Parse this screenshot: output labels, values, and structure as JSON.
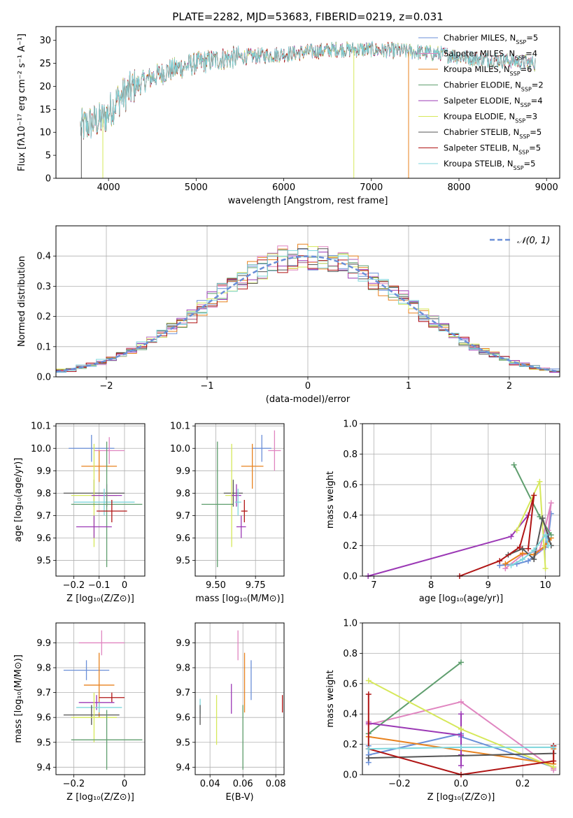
{
  "figure_title": "PLATE=2282, MJD=53683, FIBERID=0219, z=0.031",
  "colors": {
    "c0": "#6a8fd8",
    "c1": "#e8821e",
    "c2": "#5f9e6e",
    "c3": "#e085c0",
    "c4": "#9b38b5",
    "c5": "#d6e85a",
    "c6": "#555555",
    "c7": "#b01515",
    "c8": "#7fd6dc"
  },
  "chart_data": [
    {
      "id": "spectrum",
      "type": "line",
      "xlabel": "wavelength [Angstrom, rest frame]",
      "ylabel": "Flux [fλ10⁻¹⁷ erg cm⁻² s⁻¹ A⁻¹]",
      "xlim": [
        3400,
        9150
      ],
      "ylim": [
        0,
        33
      ],
      "xticks": [
        4000,
        5000,
        6000,
        7000,
        8000,
        9000
      ],
      "yticks": [
        0,
        5,
        10,
        15,
        20,
        25,
        30
      ],
      "legend_placement": "upper right",
      "legend": [
        {
          "label": "Chabrier MILES, N_SSP=5",
          "color": "c0"
        },
        {
          "label": "Salpeter MILES, N_SSP=4",
          "color": "c3"
        },
        {
          "label": "Kroupa MILES, N_SSP=6",
          "color": "c1"
        },
        {
          "label": "Chabrier ELODIE, N_SSP=2",
          "color": "c2"
        },
        {
          "label": "Salpeter ELODIE, N_SSP=4",
          "color": "c4"
        },
        {
          "label": "Kroupa ELODIE, N_SSP=3",
          "color": "c5"
        },
        {
          "label": "Chabrier STELIB, N_SSP=5",
          "color": "c6"
        },
        {
          "label": "Salpeter STELIB, N_SSP=5",
          "color": "c7"
        },
        {
          "label": "Kroupa STELIB, N_SSP=5",
          "color": "c8"
        }
      ],
      "continuum": [
        [
          3680,
          11
        ],
        [
          3800,
          12
        ],
        [
          3950,
          13
        ],
        [
          4100,
          17
        ],
        [
          4300,
          20
        ],
        [
          4500,
          22
        ],
        [
          4700,
          23.5
        ],
        [
          5000,
          25
        ],
        [
          5300,
          26
        ],
        [
          5600,
          26.5
        ],
        [
          6000,
          27
        ],
        [
          6300,
          27.5
        ],
        [
          6600,
          28
        ],
        [
          7000,
          28
        ],
        [
          7500,
          27.5
        ],
        [
          7800,
          27
        ],
        [
          8200,
          26
        ],
        [
          8600,
          25.5
        ],
        [
          8870,
          25
        ]
      ],
      "dropouts": [
        {
          "x": 3690,
          "color": "c6",
          "bottom": 0
        },
        {
          "x": 3935,
          "color": "c5",
          "bottom": 0
        },
        {
          "x": 6800,
          "color": "c5",
          "bottom": 0
        },
        {
          "x": 7425,
          "color": "c1",
          "bottom": 0
        }
      ]
    },
    {
      "id": "residuals",
      "type": "step",
      "xlabel": "(data-model)/error",
      "ylabel": "Normed distribution",
      "xlim": [
        -2.5,
        2.5
      ],
      "ylim": [
        0,
        0.5
      ],
      "xticks": [
        -2,
        -1,
        0,
        1,
        2
      ],
      "yticks": [
        0.0,
        0.1,
        0.2,
        0.3,
        0.4
      ],
      "grid": true,
      "legend_placement": "upper right",
      "legend": [
        {
          "label": "N(0,1)",
          "style": "dashed",
          "color": "c0"
        }
      ],
      "bin_width": 0.1
    },
    {
      "id": "age_vs_Z",
      "type": "errorbar",
      "xlabel": "Z [log₁₀(Z/Z⊙)]",
      "ylabel": "age [log₁₀(age/yr)]",
      "xlim": [
        -0.27,
        0.08
      ],
      "ylim": [
        9.43,
        10.11
      ],
      "xticks": [
        -0.2,
        -0.1,
        0.0
      ],
      "yticks": [
        9.5,
        9.6,
        9.7,
        9.8,
        9.9,
        10.0,
        10.1
      ],
      "points": [
        {
          "c": "c0",
          "x": -0.13,
          "xerr": 0.09,
          "y": 10.0,
          "yerr": 0.06
        },
        {
          "c": "c3",
          "x": -0.06,
          "xerr": 0.06,
          "y": 9.99,
          "yerr": 0.06
        },
        {
          "c": "c1",
          "x": -0.1,
          "xerr": 0.07,
          "y": 9.92,
          "yerr": 0.07
        },
        {
          "c": "c6",
          "x": -0.12,
          "xerr": 0.12,
          "y": 9.8,
          "yerr": 0.06
        },
        {
          "c": "c5",
          "x": -0.12,
          "xerr": 0.09,
          "y": 9.79,
          "yerr": 0.23
        },
        {
          "c": "c4",
          "x": -0.07,
          "xerr": 0.06,
          "y": 9.79,
          "yerr": 0.05
        },
        {
          "c": "c8",
          "x": -0.08,
          "xerr": 0.12,
          "y": 9.76,
          "yerr": 0.06
        },
        {
          "c": "c2",
          "x": -0.07,
          "xerr": 0.14,
          "y": 9.75,
          "yerr": 0.28
        },
        {
          "c": "c7",
          "x": -0.05,
          "xerr": 0.06,
          "y": 9.72,
          "yerr": 0.05
        },
        {
          "c": "c4",
          "x": -0.12,
          "xerr": 0.07,
          "y": 9.65,
          "yerr": 0.05
        }
      ]
    },
    {
      "id": "age_vs_mass",
      "type": "errorbar",
      "xlabel": "mass [log₁₀(M/M⊙)]",
      "ylabel": "",
      "xlim": [
        9.37,
        9.93
      ],
      "ylim": [
        9.43,
        10.11
      ],
      "xticks": [
        9.5,
        9.75
      ],
      "xticklabels": [
        "9.50",
        "9.75"
      ],
      "yticks": [
        9.5,
        9.6,
        9.7,
        9.8,
        9.9,
        10.0,
        10.1
      ],
      "points": [
        {
          "c": "c0",
          "x": 9.79,
          "xerr": 0.06,
          "y": 10.0,
          "yerr": 0.06
        },
        {
          "c": "c3",
          "x": 9.87,
          "xerr": 0.04,
          "y": 9.99,
          "yerr": 0.09
        },
        {
          "c": "c1",
          "x": 9.73,
          "xerr": 0.07,
          "y": 9.92,
          "yerr": 0.1
        },
        {
          "c": "c6",
          "x": 9.61,
          "xerr": 0.06,
          "y": 9.8,
          "yerr": 0.06
        },
        {
          "c": "c5",
          "x": 9.6,
          "xerr": 0.04,
          "y": 9.79,
          "yerr": 0.23
        },
        {
          "c": "c4",
          "x": 9.63,
          "xerr": 0.03,
          "y": 9.79,
          "yerr": 0.05
        },
        {
          "c": "c8",
          "x": 9.64,
          "xerr": 0.02,
          "y": 9.76,
          "yerr": 0.06
        },
        {
          "c": "c2",
          "x": 9.51,
          "xerr": 0.1,
          "y": 9.75,
          "yerr": 0.28
        },
        {
          "c": "c7",
          "x": 9.68,
          "xerr": 0.02,
          "y": 9.72,
          "yerr": 0.05
        },
        {
          "c": "c4",
          "x": 9.66,
          "xerr": 0.03,
          "y": 9.65,
          "yerr": 0.05
        }
      ]
    },
    {
      "id": "mass_weight_vs_age",
      "type": "line",
      "xlabel": "age [log₁₀(age/yr)]",
      "ylabel": "mass weight",
      "xlim": [
        6.8,
        10.25
      ],
      "ylim": [
        0,
        1.0
      ],
      "xticks": [
        7,
        8,
        9,
        10
      ],
      "yticks": [
        0.0,
        0.2,
        0.4,
        0.6,
        0.8,
        1.0
      ],
      "grid": true,
      "series": [
        {
          "c": "c0",
          "points": [
            [
              9.2,
              0.07
            ],
            [
              9.5,
              0.08
            ],
            [
              9.7,
              0.1
            ],
            [
              10.0,
              0.19
            ],
            [
              10.1,
              0.41
            ],
            [
              10.05,
              0.25
            ]
          ]
        },
        {
          "c": "c3",
          "points": [
            [
              9.3,
              0.05
            ],
            [
              9.6,
              0.14
            ],
            [
              9.9,
              0.17
            ],
            [
              10.1,
              0.48
            ],
            [
              10.05,
              0.3
            ]
          ]
        },
        {
          "c": "c1",
          "points": [
            [
              9.3,
              0.08
            ],
            [
              9.6,
              0.15
            ],
            [
              9.8,
              0.14
            ],
            [
              10.0,
              0.2
            ],
            [
              10.1,
              0.25
            ]
          ]
        },
        {
          "c": "c2",
          "points": [
            [
              9.45,
              0.73
            ],
            [
              9.9,
              0.39
            ],
            [
              10.1,
              0.27
            ]
          ]
        },
        {
          "c": "c4",
          "points": [
            [
              6.9,
              0.0
            ],
            [
              9.4,
              0.26
            ],
            [
              9.7,
              0.4
            ]
          ]
        },
        {
          "c": "c5",
          "points": [
            [
              9.5,
              0.3
            ],
            [
              9.9,
              0.62
            ],
            [
              10.0,
              0.05
            ]
          ]
        },
        {
          "c": "c6",
          "points": [
            [
              9.35,
              0.14
            ],
            [
              9.6,
              0.18
            ],
            [
              9.8,
              0.11
            ],
            [
              9.95,
              0.38
            ],
            [
              10.1,
              0.2
            ]
          ]
        },
        {
          "c": "c7",
          "points": [
            [
              8.5,
              0.0
            ],
            [
              9.2,
              0.1
            ],
            [
              9.55,
              0.19
            ],
            [
              9.8,
              0.53
            ],
            [
              9.7,
              0.18
            ]
          ]
        },
        {
          "c": "c8",
          "points": [
            [
              9.4,
              0.07
            ],
            [
              9.6,
              0.11
            ],
            [
              9.8,
              0.17
            ],
            [
              10.0,
              0.27
            ],
            [
              10.05,
              0.2
            ]
          ]
        }
      ]
    },
    {
      "id": "mass_vs_Z",
      "type": "errorbar",
      "xlabel": "Z [log₁₀(Z/Z⊙)]",
      "ylabel": "mass [log₁₀(M/M⊙)]",
      "xlim": [
        -0.27,
        0.08
      ],
      "ylim": [
        9.37,
        9.98
      ],
      "xticks": [
        -0.2,
        0.0
      ],
      "yticks": [
        9.4,
        9.5,
        9.6,
        9.7,
        9.8,
        9.9
      ],
      "points": [
        {
          "c": "c3",
          "x": -0.09,
          "xerr": 0.09,
          "y": 9.9,
          "yerr": 0.05
        },
        {
          "c": "c0",
          "x": -0.15,
          "xerr": 0.09,
          "y": 9.79,
          "yerr": 0.04
        },
        {
          "c": "c1",
          "x": -0.1,
          "xerr": 0.06,
          "y": 9.73,
          "yerr": 0.13
        },
        {
          "c": "c7",
          "x": -0.05,
          "xerr": 0.05,
          "y": 9.68,
          "yerr": 0.02
        },
        {
          "c": "c4",
          "x": -0.11,
          "xerr": 0.07,
          "y": 9.66,
          "yerr": 0.03
        },
        {
          "c": "c8",
          "x": -0.1,
          "xerr": 0.09,
          "y": 9.64,
          "yerr": 0.02
        },
        {
          "c": "c6",
          "x": -0.13,
          "xerr": 0.11,
          "y": 9.61,
          "yerr": 0.04
        },
        {
          "c": "c5",
          "x": -0.12,
          "xerr": 0.09,
          "y": 9.6,
          "yerr": 0.1
        },
        {
          "c": "c2",
          "x": -0.07,
          "xerr": 0.14,
          "y": 9.51,
          "yerr": 0.12
        }
      ]
    },
    {
      "id": "mass_vs_EBV",
      "type": "errorbar",
      "xlabel": "E(B-V)",
      "ylabel": "",
      "xlim": [
        0.031,
        0.085
      ],
      "ylim": [
        9.37,
        9.98
      ],
      "xticks": [
        0.04,
        0.06,
        0.08
      ],
      "xticklabels": [
        "0.04",
        "0.06",
        "0.08"
      ],
      "yticks": [
        9.4,
        9.5,
        9.6,
        9.7,
        9.8,
        9.9
      ],
      "points": [
        {
          "c": "c3",
          "x": 0.057,
          "y": 9.89,
          "yerr": 0.06
        },
        {
          "c": "c0",
          "x": 0.065,
          "y": 9.75,
          "yerr": 0.08
        },
        {
          "c": "c1",
          "x": 0.061,
          "y": 9.74,
          "yerr": 0.12
        },
        {
          "c": "c7",
          "x": 0.084,
          "y": 9.655,
          "yerr": 0.035
        },
        {
          "c": "c4",
          "x": 0.053,
          "y": 9.675,
          "yerr": 0.06
        },
        {
          "c": "c8",
          "x": 0.034,
          "y": 9.645,
          "yerr": 0.03
        },
        {
          "c": "c6",
          "x": 0.034,
          "y": 9.61,
          "yerr": 0.04
        },
        {
          "c": "c5",
          "x": 0.044,
          "y": 9.59,
          "yerr": 0.1
        },
        {
          "c": "c2",
          "x": 0.06,
          "y": 9.52,
          "yerr": 0.13
        }
      ]
    },
    {
      "id": "mass_weight_vs_Z",
      "type": "line",
      "xlabel": "Z [log₁₀(Z/Z⊙)]",
      "ylabel": "mass weight",
      "xlim": [
        -0.32,
        0.32
      ],
      "ylim": [
        0,
        1.0
      ],
      "xticks": [
        -0.2,
        0.0,
        0.2
      ],
      "xticklabels": [
        "−0.2",
        "0.0",
        "0.2"
      ],
      "yticks": [
        0.0,
        0.2,
        0.4,
        0.6,
        0.8,
        1.0
      ],
      "grid": true,
      "series": [
        {
          "c": "c0",
          "points": [
            [
              -0.3,
              0.19
            ],
            [
              -0.3,
              0.08
            ],
            [
              -0.3,
              0.13
            ],
            [
              0.0,
              0.27
            ],
            [
              0.0,
              0.25
            ],
            [
              0.3,
              0.05
            ]
          ]
        },
        {
          "c": "c3",
          "points": [
            [
              -0.3,
              0.35
            ],
            [
              -0.3,
              0.33
            ],
            [
              0.0,
              0.48
            ],
            [
              0.3,
              0.04
            ],
            [
              0.3,
              0.03
            ]
          ]
        },
        {
          "c": "c1",
          "points": [
            [
              -0.3,
              0.25
            ],
            [
              0.3,
              0.07
            ],
            [
              0.3,
              0.17
            ]
          ]
        },
        {
          "c": "c2",
          "points": [
            [
              -0.3,
              0.27
            ],
            [
              0.0,
              0.74
            ]
          ]
        },
        {
          "c": "c4",
          "points": [
            [
              -0.3,
              0.34
            ],
            [
              0.0,
              0.26
            ],
            [
              0.0,
              0.4
            ],
            [
              0.0,
              0.13
            ],
            [
              0.0,
              0.06
            ]
          ]
        },
        {
          "c": "c5",
          "points": [
            [
              -0.3,
              0.62
            ],
            [
              0.0,
              0.3
            ],
            [
              0.3,
              0.05
            ]
          ]
        },
        {
          "c": "c6",
          "points": [
            [
              -0.3,
              0.11
            ],
            [
              0.3,
              0.14
            ],
            [
              0.3,
              0.19
            ]
          ]
        },
        {
          "c": "c7",
          "points": [
            [
              -0.3,
              0.53
            ],
            [
              -0.3,
              0.17
            ],
            [
              0.0,
              0.0
            ],
            [
              0.3,
              0.09
            ],
            [
              0.3,
              0.19
            ]
          ]
        },
        {
          "c": "c8",
          "points": [
            [
              -0.3,
              0.17
            ],
            [
              0.0,
              0.18
            ],
            [
              0.3,
              0.18
            ]
          ]
        }
      ]
    }
  ]
}
